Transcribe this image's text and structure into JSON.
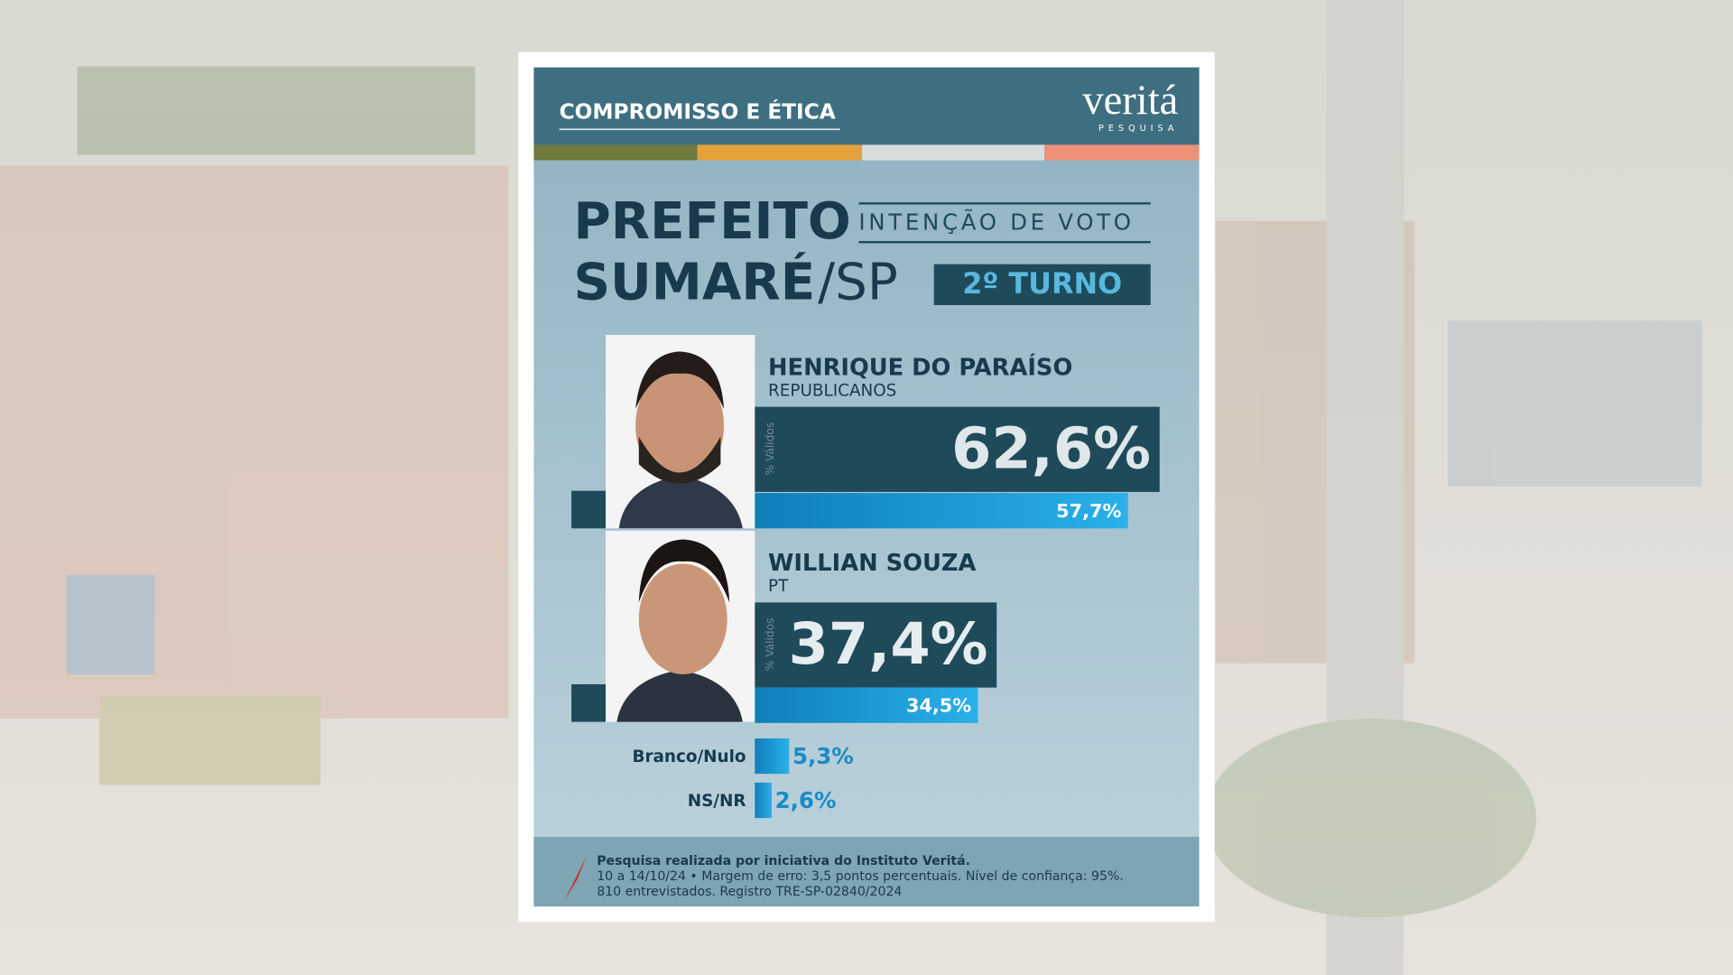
{
  "header": {
    "tagline": "COMPROMISSO E ÉTICA",
    "brand": "veritá",
    "brand_sub": "PESQUISA"
  },
  "chart_data": {
    "type": "bar",
    "orientation": "horizontal",
    "title": "PREFEITO",
    "subtitle": "INTENÇÃO DE VOTO",
    "city": "SUMARÉ",
    "state": "/SP",
    "round": "2º TURNO",
    "categories": [
      "HENRIQUE DO PARAÍSO",
      "WILLIAN SOUZA",
      "Branco/Nulo",
      "NS/NR"
    ],
    "parties": [
      "REPUBLICANOS",
      "PT",
      null,
      null
    ],
    "series": [
      {
        "name": "% Válidos",
        "color": "#1f4a5a",
        "values": [
          62.6,
          37.4,
          null,
          null
        ],
        "value_labels": [
          "62,6%",
          "37,4%",
          null,
          null
        ]
      },
      {
        "color": "#1c9ad6",
        "values": [
          57.7,
          34.5,
          5.3,
          2.6
        ],
        "value_labels": [
          "57,7%",
          "34,5%",
          "5,3%",
          "2,6%"
        ]
      }
    ]
  },
  "footer": {
    "lines": [
      "Pesquisa realizada por iniciativa do Instituto Veritá.",
      "10 a 14/10/24 • Margem de erro: 3,5 pontos percentuais. Nível de confiança: 95%.",
      "810 entrevistados. Registro TRE-SP-02840/2024"
    ]
  }
}
